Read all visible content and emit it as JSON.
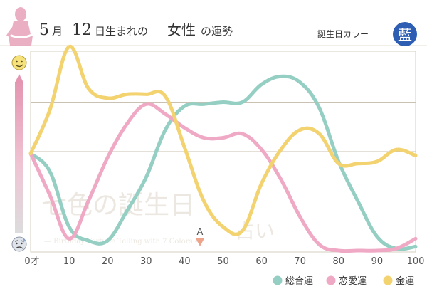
{
  "header": {
    "month": "5",
    "month_unit": "月",
    "day": "12",
    "day_unit": "日生まれの",
    "gender": "女性",
    "suffix": "の運勢",
    "color_label": "誕生日カラー",
    "color_name": "藍",
    "color_hex": "#2d5eb3"
  },
  "icons": {
    "top": "smiley-face-icon",
    "bottom": "worried-face-icon",
    "silhouette": "woman-silhouette-icon"
  },
  "watermark": {
    "main": "七色の誕生日",
    "sub": "占い",
    "english": "— Birthday Fortune Telling with 7 Colors —"
  },
  "marker": {
    "label": "A",
    "x": 44
  },
  "colors": {
    "total": "#95cfc3",
    "love": "#f0a9c4",
    "money": "#f3d270",
    "grid": "#c9c1b2",
    "border": "#d6cec1",
    "pink": "#e496b0"
  },
  "chart_data": {
    "type": "line",
    "x_ticks": [
      "0才",
      "10",
      "20",
      "30",
      "40",
      "50",
      "60",
      "70",
      "80",
      "90",
      "100"
    ],
    "x_tick_values": [
      0,
      10,
      20,
      30,
      40,
      50,
      60,
      70,
      80,
      90,
      100
    ],
    "xlim": [
      0,
      100
    ],
    "ylim": [
      0,
      100
    ],
    "grid": true,
    "legend_position": "bottom-right",
    "series": [
      {
        "name": "総合運",
        "color": "#95cfc3",
        "points": [
          [
            0,
            49
          ],
          [
            5,
            40
          ],
          [
            10,
            12
          ],
          [
            15,
            5
          ],
          [
            20,
            5
          ],
          [
            25,
            20
          ],
          [
            30,
            37
          ],
          [
            35,
            61
          ],
          [
            40,
            73
          ],
          [
            45,
            74
          ],
          [
            50,
            75
          ],
          [
            55,
            75
          ],
          [
            60,
            84
          ],
          [
            65,
            88
          ],
          [
            70,
            85
          ],
          [
            75,
            72
          ],
          [
            80,
            45
          ],
          [
            85,
            25
          ],
          [
            90,
            7
          ],
          [
            95,
            1
          ],
          [
            100,
            2
          ]
        ]
      },
      {
        "name": "恋愛運",
        "color": "#f0a9c4",
        "points": [
          [
            0,
            49
          ],
          [
            5,
            28
          ],
          [
            10,
            6
          ],
          [
            15,
            25
          ],
          [
            20,
            47
          ],
          [
            25,
            64
          ],
          [
            30,
            74
          ],
          [
            35,
            69
          ],
          [
            40,
            62
          ],
          [
            45,
            57
          ],
          [
            50,
            57
          ],
          [
            55,
            59
          ],
          [
            60,
            51
          ],
          [
            65,
            36
          ],
          [
            70,
            17
          ],
          [
            75,
            3
          ],
          [
            80,
            0
          ],
          [
            85,
            0
          ],
          [
            90,
            0
          ],
          [
            95,
            1
          ],
          [
            100,
            6
          ]
        ]
      },
      {
        "name": "金運",
        "color": "#f3d270",
        "points": [
          [
            0,
            49
          ],
          [
            5,
            71
          ],
          [
            10,
            103
          ],
          [
            15,
            82
          ],
          [
            20,
            77
          ],
          [
            25,
            79
          ],
          [
            30,
            79
          ],
          [
            35,
            78
          ],
          [
            40,
            52
          ],
          [
            45,
            25
          ],
          [
            50,
            12
          ],
          [
            55,
            10
          ],
          [
            60,
            34
          ],
          [
            65,
            51
          ],
          [
            70,
            61
          ],
          [
            75,
            59
          ],
          [
            80,
            44
          ],
          [
            85,
            44
          ],
          [
            90,
            45
          ],
          [
            95,
            51
          ],
          [
            100,
            48
          ]
        ]
      }
    ]
  }
}
